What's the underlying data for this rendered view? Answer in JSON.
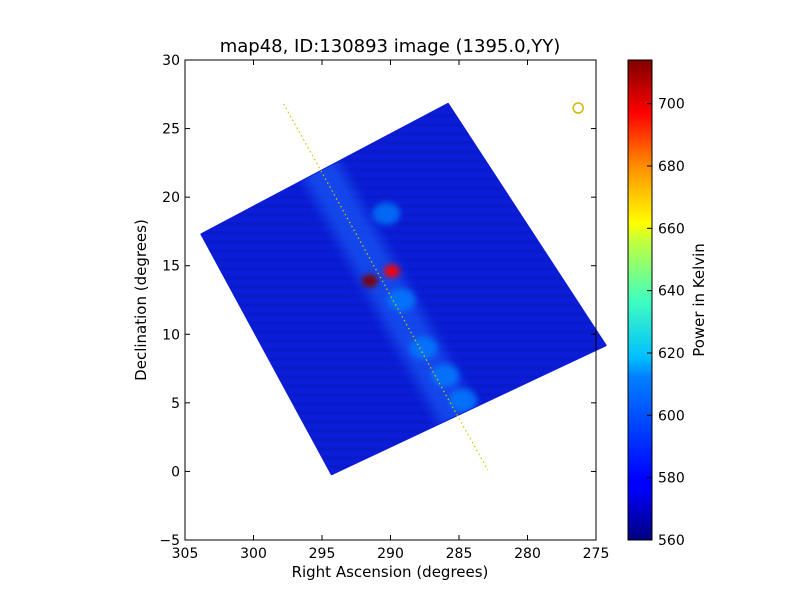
{
  "chart_data": {
    "type": "heatmap",
    "title": "map48, ID:130893 image (1395.0,YY)",
    "xlabel": "Right Ascension (degrees)",
    "ylabel": "Declination (degrees)",
    "xlim": [
      305,
      275
    ],
    "ylim": [
      -5,
      30
    ],
    "xticks": [
      305,
      300,
      295,
      290,
      285,
      280,
      275
    ],
    "xtick_labels": [
      "305",
      "300",
      "295",
      "290",
      "285",
      "280",
      "275"
    ],
    "yticks": [
      -5,
      0,
      5,
      10,
      15,
      20,
      25,
      30
    ],
    "ytick_labels": [
      "−5",
      "0",
      "5",
      "10",
      "15",
      "20",
      "25",
      "30"
    ],
    "map_outline": [
      [
        303.8,
        17.3
      ],
      [
        285.8,
        26.8
      ],
      [
        274.3,
        9.2
      ],
      [
        294.3,
        -0.2
      ]
    ],
    "hotspots": [
      {
        "ra": 291.5,
        "dec": 13.9,
        "power": 700
      },
      {
        "ra": 289.9,
        "dec": 14.6,
        "power": 690
      },
      {
        "ra": 284.7,
        "dec": 5.2,
        "power": 610
      },
      {
        "ra": 286.0,
        "dec": 7.0,
        "power": 600
      },
      {
        "ra": 287.6,
        "dec": 9.0,
        "power": 595
      },
      {
        "ra": 289.2,
        "dec": 12.5,
        "power": 600
      },
      {
        "ra": 290.3,
        "dec": 18.8,
        "power": 590
      }
    ],
    "galactic_plane": [
      [
        297.8,
        26.8
      ],
      [
        282.9,
        0.1
      ]
    ],
    "marker_circle": {
      "ra": 276.3,
      "dec": 26.5
    },
    "colorbar": {
      "label": "Power in Kelvin",
      "min": 560,
      "max": 714,
      "ticks": [
        560,
        580,
        600,
        620,
        640,
        660,
        680,
        700
      ],
      "tick_labels": [
        "560",
        "580",
        "600",
        "620",
        "640",
        "660",
        "680",
        "700"
      ],
      "colormap": "jet"
    }
  }
}
